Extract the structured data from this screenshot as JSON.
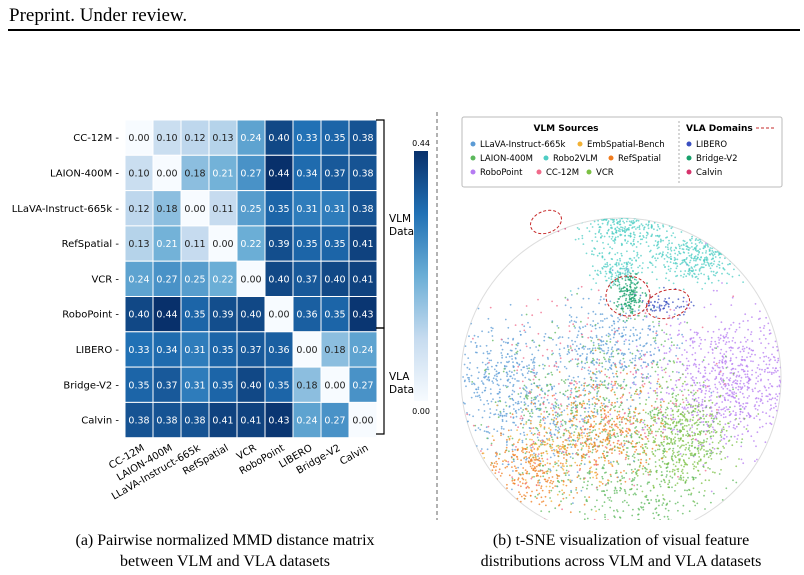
{
  "header": {
    "text": "Preprint. Under review."
  },
  "chart_data": [
    {
      "type": "heatmap",
      "title": "",
      "row_labels": [
        "CC-12M",
        "LAION-400M",
        "LLaVA-Instruct-665k",
        "RefSpatial",
        "VCR",
        "RoboPoint",
        "LIBERO",
        "Bridge-V2",
        "Calvin"
      ],
      "col_labels": [
        "CC-12M",
        "LAION-400M",
        "LLaVA-Instruct-665k",
        "RefSpatial",
        "VCR",
        "RoboPoint",
        "LIBERO",
        "Bridge-V2",
        "Calvin"
      ],
      "values": [
        [
          0.0,
          0.1,
          0.12,
          0.13,
          0.24,
          0.4,
          0.33,
          0.35,
          0.38
        ],
        [
          0.1,
          0.0,
          0.18,
          0.21,
          0.27,
          0.44,
          0.34,
          0.37,
          0.38
        ],
        [
          0.12,
          0.18,
          0.0,
          0.11,
          0.25,
          0.35,
          0.31,
          0.31,
          0.38
        ],
        [
          0.13,
          0.21,
          0.11,
          0.0,
          0.22,
          0.39,
          0.35,
          0.35,
          0.41
        ],
        [
          0.24,
          0.27,
          0.25,
          0.22,
          0.0,
          0.4,
          0.37,
          0.4,
          0.41
        ],
        [
          0.4,
          0.44,
          0.35,
          0.39,
          0.4,
          0.0,
          0.36,
          0.35,
          0.43
        ],
        [
          0.33,
          0.34,
          0.31,
          0.35,
          0.37,
          0.36,
          0.0,
          0.18,
          0.24
        ],
        [
          0.35,
          0.37,
          0.31,
          0.35,
          0.4,
          0.35,
          0.18,
          0.0,
          0.27
        ],
        [
          0.38,
          0.38,
          0.38,
          0.41,
          0.41,
          0.43,
          0.24,
          0.27,
          0.0
        ]
      ],
      "colorbar": {
        "min": 0.0,
        "max": 0.44,
        "min_label": "0.00",
        "max_label": "0.44"
      },
      "groups": [
        {
          "label_line1": "VLM",
          "label_line2": "Data",
          "rows": [
            0,
            5
          ]
        },
        {
          "label_line1": "VLA",
          "label_line2": "Data",
          "rows": [
            6,
            8
          ]
        }
      ],
      "colors": {
        "low": "#f7fbff",
        "high": "#08306b"
      }
    },
    {
      "type": "scatter",
      "title": "",
      "legend": {
        "vlm_title": "VLM Sources",
        "vla_title": "VLA Domains",
        "vlm_entries": [
          {
            "name": "LLaVA-Instruct-665k",
            "color": "#5b9bd5"
          },
          {
            "name": "EmbSpatial-Bench",
            "color": "#f2b134"
          },
          {
            "name": "LAION-400M",
            "color": "#5cb85c"
          },
          {
            "name": "Robo2VLM",
            "color": "#4ecdc4"
          },
          {
            "name": "RefSpatial",
            "color": "#f07c1e"
          },
          {
            "name": "RoboPoint",
            "color": "#b57bf2"
          },
          {
            "name": "CC-12M",
            "color": "#f06a8a"
          },
          {
            "name": "VCR",
            "color": "#7bc043"
          }
        ],
        "vla_entries": [
          {
            "name": "LIBERO",
            "color": "#3a4fc0"
          },
          {
            "name": "Bridge-V2",
            "color": "#16a06b"
          },
          {
            "name": "Calvin",
            "color": "#d6336c"
          }
        ]
      }
    }
  ],
  "captions": {
    "a_line1": "(a) Pairwise normalized MMD distance matrix",
    "a_line2": "between VLM and VLA datasets",
    "b_line1": "(b) t-SNE visualization of visual feature",
    "b_line2": "distributions across VLM and VLA datasets"
  }
}
